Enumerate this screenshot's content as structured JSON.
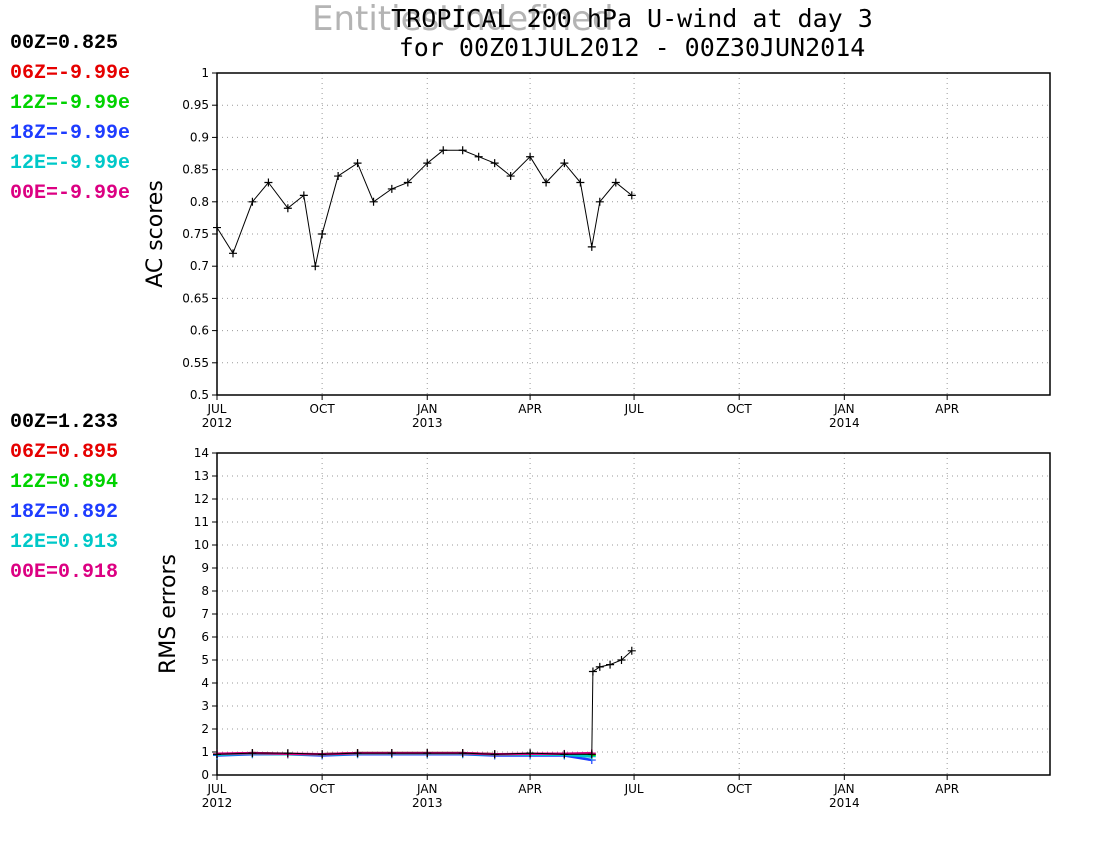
{
  "overlay_text": "EntitiesUndefined",
  "title_line1": "TROPICAL 200 hPa U-wind at day 3",
  "title_line2": "for 00Z01JUL2012 - 00Z30JUN2014",
  "colors": {
    "00Z": "#000000",
    "06Z": "#e60000",
    "12Z": "#00d200",
    "18Z": "#1e3cff",
    "12E": "#00c8c8",
    "00E": "#dc0082"
  },
  "chart_data": [
    {
      "type": "line",
      "ylabel": "AC scores",
      "ylim": [
        0.5,
        1
      ],
      "yticks": [
        "0.5",
        "0.55",
        "0.6",
        "0.65",
        "0.7",
        "0.75",
        "0.8",
        "0.85",
        "0.9",
        "0.95",
        "1"
      ],
      "xticks": [
        {
          "label": "JUL",
          "year": "2012",
          "date": "2012-07-01"
        },
        {
          "label": "OCT",
          "year": "",
          "date": "2012-10-01"
        },
        {
          "label": "JAN",
          "year": "2013",
          "date": "2013-01-01"
        },
        {
          "label": "APR",
          "year": "",
          "date": "2013-04-01"
        },
        {
          "label": "JUL",
          "year": "",
          "date": "2013-07-01"
        },
        {
          "label": "OCT",
          "year": "",
          "date": "2013-10-01"
        },
        {
          "label": "JAN",
          "year": "2014",
          "date": "2014-01-01"
        },
        {
          "label": "APR",
          "year": "",
          "date": "2014-04-01"
        }
      ],
      "grid": true,
      "legend": [
        {
          "key": "00Z",
          "text": "00Z=0.825"
        },
        {
          "key": "06Z",
          "text": "06Z=-9.99e"
        },
        {
          "key": "12Z",
          "text": "12Z=-9.99e"
        },
        {
          "key": "18Z",
          "text": "18Z=-9.99e"
        },
        {
          "key": "12E",
          "text": "12E=-9.99e"
        },
        {
          "key": "00E",
          "text": "00E=-9.99e"
        }
      ],
      "series": [
        {
          "key": "00Z",
          "x": [
            "2012-07-01",
            "2012-07-15",
            "2012-08-01",
            "2012-08-15",
            "2012-09-01",
            "2012-09-15",
            "2012-09-25",
            "2012-10-01",
            "2012-10-15",
            "2012-11-01",
            "2012-11-15",
            "2012-12-01",
            "2012-12-15",
            "2013-01-01",
            "2013-01-15",
            "2013-02-01",
            "2013-02-15",
            "2013-03-01",
            "2013-03-15",
            "2013-04-01",
            "2013-04-15",
            "2013-05-01",
            "2013-05-15",
            "2013-05-25",
            "2013-06-01",
            "2013-06-15",
            "2013-06-29"
          ],
          "y": [
            0.76,
            0.72,
            0.8,
            0.83,
            0.79,
            0.81,
            0.7,
            0.75,
            0.84,
            0.86,
            0.8,
            0.82,
            0.83,
            0.86,
            0.88,
            0.88,
            0.87,
            0.86,
            0.84,
            0.87,
            0.83,
            0.86,
            0.83,
            0.73,
            0.8,
            0.83,
            0.81
          ]
        }
      ]
    },
    {
      "type": "line",
      "ylabel": "RMS errors",
      "ylim": [
        0,
        14
      ],
      "yticks": [
        "0",
        "1",
        "2",
        "3",
        "4",
        "5",
        "6",
        "7",
        "8",
        "9",
        "10",
        "11",
        "12",
        "13",
        "14"
      ],
      "xticks": [
        {
          "label": "JUL",
          "year": "2012",
          "date": "2012-07-01"
        },
        {
          "label": "OCT",
          "year": "",
          "date": "2012-10-01"
        },
        {
          "label": "JAN",
          "year": "2013",
          "date": "2013-01-01"
        },
        {
          "label": "APR",
          "year": "",
          "date": "2013-04-01"
        },
        {
          "label": "JUL",
          "year": "",
          "date": "2013-07-01"
        },
        {
          "label": "OCT",
          "year": "",
          "date": "2013-10-01"
        },
        {
          "label": "JAN",
          "year": "2014",
          "date": "2014-01-01"
        },
        {
          "label": "APR",
          "year": "",
          "date": "2014-04-01"
        }
      ],
      "grid": true,
      "legend": [
        {
          "key": "00Z",
          "text": "00Z=1.233"
        },
        {
          "key": "06Z",
          "text": "06Z=0.895"
        },
        {
          "key": "12Z",
          "text": "12Z=0.894"
        },
        {
          "key": "18Z",
          "text": "18Z=0.892"
        },
        {
          "key": "12E",
          "text": "12E=0.913"
        },
        {
          "key": "00E",
          "text": "00E=0.918"
        }
      ],
      "series": [
        {
          "key": "00Z",
          "x": [
            "2012-07-01",
            "2012-08-01",
            "2012-09-01",
            "2012-10-01",
            "2012-11-01",
            "2012-12-01",
            "2013-01-01",
            "2013-02-01",
            "2013-03-01",
            "2013-04-01",
            "2013-05-01",
            "2013-05-25",
            "2013-05-26",
            "2013-06-01",
            "2013-06-10",
            "2013-06-20",
            "2013-06-29"
          ],
          "y": [
            0.9,
            0.95,
            0.95,
            0.9,
            0.95,
            0.95,
            0.95,
            0.95,
            0.9,
            0.95,
            0.9,
            0.9,
            4.5,
            4.7,
            4.8,
            5.0,
            5.4
          ]
        },
        {
          "key": "06Z",
          "x": [
            "2012-07-01",
            "2012-08-01",
            "2012-09-01",
            "2012-10-01",
            "2012-11-01",
            "2012-12-01",
            "2013-01-01",
            "2013-02-01",
            "2013-03-01",
            "2013-04-01",
            "2013-05-01",
            "2013-05-25"
          ],
          "y": [
            0.9,
            0.95,
            0.9,
            0.9,
            0.95,
            0.95,
            0.95,
            0.95,
            0.9,
            0.9,
            0.9,
            0.9
          ]
        },
        {
          "key": "12Z",
          "x": [
            "2012-07-01",
            "2012-08-01",
            "2012-09-01",
            "2012-10-01",
            "2012-11-01",
            "2012-12-01",
            "2013-01-01",
            "2013-02-01",
            "2013-03-01",
            "2013-04-01",
            "2013-05-01",
            "2013-05-25"
          ],
          "y": [
            0.9,
            0.95,
            0.9,
            0.9,
            0.95,
            0.95,
            0.95,
            0.95,
            0.9,
            0.9,
            0.9,
            0.85
          ]
        },
        {
          "key": "18Z",
          "x": [
            "2012-07-01",
            "2012-08-01",
            "2012-09-01",
            "2012-10-01",
            "2012-11-01",
            "2012-12-01",
            "2013-01-01",
            "2013-02-01",
            "2013-03-01",
            "2013-04-01",
            "2013-05-01",
            "2013-05-25"
          ],
          "y": [
            0.85,
            0.9,
            0.9,
            0.85,
            0.9,
            0.9,
            0.9,
            0.9,
            0.85,
            0.85,
            0.85,
            0.65
          ]
        },
        {
          "key": "12E",
          "x": [
            "2012-07-01",
            "2012-08-01",
            "2012-09-01",
            "2012-10-01",
            "2012-11-01",
            "2012-12-01",
            "2013-01-01",
            "2013-02-01",
            "2013-03-01",
            "2013-04-01",
            "2013-05-01",
            "2013-05-25"
          ],
          "y": [
            0.88,
            0.92,
            0.9,
            0.88,
            0.92,
            0.92,
            0.92,
            0.92,
            0.88,
            0.88,
            0.88,
            0.8
          ]
        },
        {
          "key": "00E",
          "x": [
            "2012-07-01",
            "2012-08-01",
            "2012-09-01",
            "2012-10-01",
            "2012-11-01",
            "2012-12-01",
            "2013-01-01",
            "2013-02-01",
            "2013-03-01",
            "2013-04-01",
            "2013-05-01",
            "2013-05-25"
          ],
          "y": [
            0.92,
            0.95,
            0.92,
            0.9,
            0.95,
            0.95,
            0.95,
            0.95,
            0.9,
            0.92,
            0.92,
            0.95
          ]
        }
      ]
    }
  ]
}
